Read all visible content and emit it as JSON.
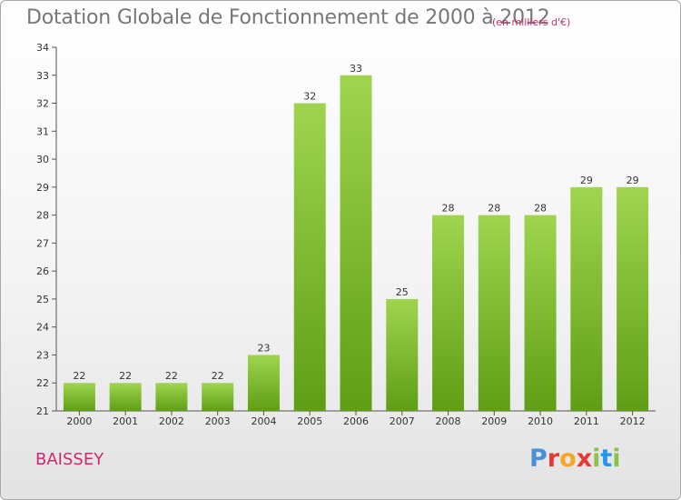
{
  "title": "Dotation Globale de Fonctionnement de 2000 à 2012",
  "subtitle": "(en milliers d'€)",
  "place": "BAISSEY",
  "brand": {
    "letters": [
      "P",
      "r",
      "o",
      "x",
      "i",
      "t",
      "i"
    ],
    "colors": [
      "#4a90d9",
      "#e53935",
      "#f5a623",
      "#e53935",
      "#8bc34a",
      "#2196f3",
      "#8bc34a"
    ]
  },
  "colors": {
    "bar_light": "#9fd54e",
    "bar_dark": "#5f9e14",
    "axis": "#555555",
    "grid": "#cccccc",
    "text": "#333333"
  },
  "chart_data": {
    "type": "bar",
    "categories": [
      "2000",
      "2001",
      "2002",
      "2003",
      "2004",
      "2005",
      "2006",
      "2007",
      "2008",
      "2009",
      "2010",
      "2011",
      "2012"
    ],
    "values": [
      22,
      22,
      22,
      22,
      23,
      32,
      33,
      25,
      28,
      28,
      28,
      29,
      29
    ],
    "data_labels": [
      "22",
      "22",
      "22",
      "22",
      "23",
      "32",
      "33",
      "25",
      "28",
      "28",
      "28",
      "29",
      "29"
    ],
    "yticks": [
      "21",
      "22",
      "23",
      "24",
      "25",
      "26",
      "27",
      "28",
      "29",
      "30",
      "31",
      "32",
      "33",
      "34"
    ],
    "ylim": [
      21,
      34
    ],
    "grid": false,
    "legend": "none"
  }
}
